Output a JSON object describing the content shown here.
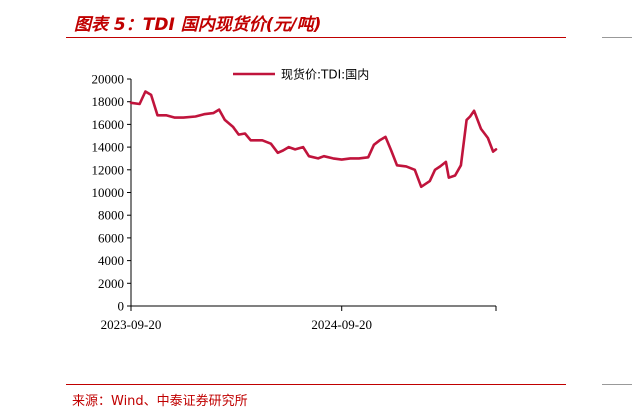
{
  "header": {
    "title": "图表 5：TDI 国内现货价(元/吨)"
  },
  "footer": {
    "source": "来源：Wind、中泰证券研究所"
  },
  "colors": {
    "accent": "#c00000",
    "series": "#c0143c"
  },
  "chart_data": {
    "type": "line",
    "title": "",
    "xlabel": "",
    "ylabel": "",
    "ylim": [
      0,
      20000
    ],
    "yticks": [
      0,
      2000,
      4000,
      6000,
      8000,
      10000,
      12000,
      14000,
      16000,
      18000,
      20000
    ],
    "xticks": [
      "2023-09-20",
      "2024-09-20"
    ],
    "legend_position": "top-center",
    "grid": false,
    "series": [
      {
        "name": "现货价:TDI:国内",
        "points": [
          [
            "2023-09-20",
            17900
          ],
          [
            "2023-10-05",
            17800
          ],
          [
            "2023-10-15",
            18900
          ],
          [
            "2023-10-25",
            18600
          ],
          [
            "2023-11-05",
            16800
          ],
          [
            "2023-11-20",
            16800
          ],
          [
            "2023-12-05",
            16600
          ],
          [
            "2023-12-20",
            16600
          ],
          [
            "2024-01-10",
            16700
          ],
          [
            "2024-01-25",
            16900
          ],
          [
            "2024-02-10",
            17000
          ],
          [
            "2024-02-20",
            17300
          ],
          [
            "2024-03-01",
            16400
          ],
          [
            "2024-03-15",
            15800
          ],
          [
            "2024-03-25",
            15100
          ],
          [
            "2024-04-05",
            15200
          ],
          [
            "2024-04-15",
            14600
          ],
          [
            "2024-05-05",
            14600
          ],
          [
            "2024-05-20",
            14300
          ],
          [
            "2024-06-01",
            13500
          ],
          [
            "2024-06-10",
            13700
          ],
          [
            "2024-06-20",
            14000
          ],
          [
            "2024-07-01",
            13800
          ],
          [
            "2024-07-15",
            14000
          ],
          [
            "2024-07-25",
            13200
          ],
          [
            "2024-08-10",
            13000
          ],
          [
            "2024-08-20",
            13200
          ],
          [
            "2024-09-05",
            13000
          ],
          [
            "2024-09-20",
            12900
          ],
          [
            "2024-10-05",
            13000
          ],
          [
            "2024-10-20",
            13000
          ],
          [
            "2024-11-05",
            13100
          ],
          [
            "2024-11-15",
            14200
          ],
          [
            "2024-11-25",
            14600
          ],
          [
            "2024-12-05",
            14900
          ],
          [
            "2024-12-15",
            13700
          ],
          [
            "2024-12-25",
            12400
          ],
          [
            "2025-01-10",
            12300
          ],
          [
            "2025-01-25",
            12000
          ],
          [
            "2025-02-05",
            10500
          ],
          [
            "2025-02-20",
            11000
          ],
          [
            "2025-03-01",
            12000
          ],
          [
            "2025-03-10",
            12300
          ],
          [
            "2025-03-20",
            12700
          ],
          [
            "2025-03-25",
            11300
          ],
          [
            "2025-04-05",
            11500
          ],
          [
            "2025-04-15",
            12400
          ],
          [
            "2025-04-25",
            16400
          ],
          [
            "2025-05-01",
            16700
          ],
          [
            "2025-05-08",
            17200
          ],
          [
            "2025-05-20",
            15600
          ],
          [
            "2025-06-01",
            14800
          ],
          [
            "2025-06-10",
            13600
          ],
          [
            "2025-06-15",
            13800
          ]
        ]
      }
    ]
  }
}
